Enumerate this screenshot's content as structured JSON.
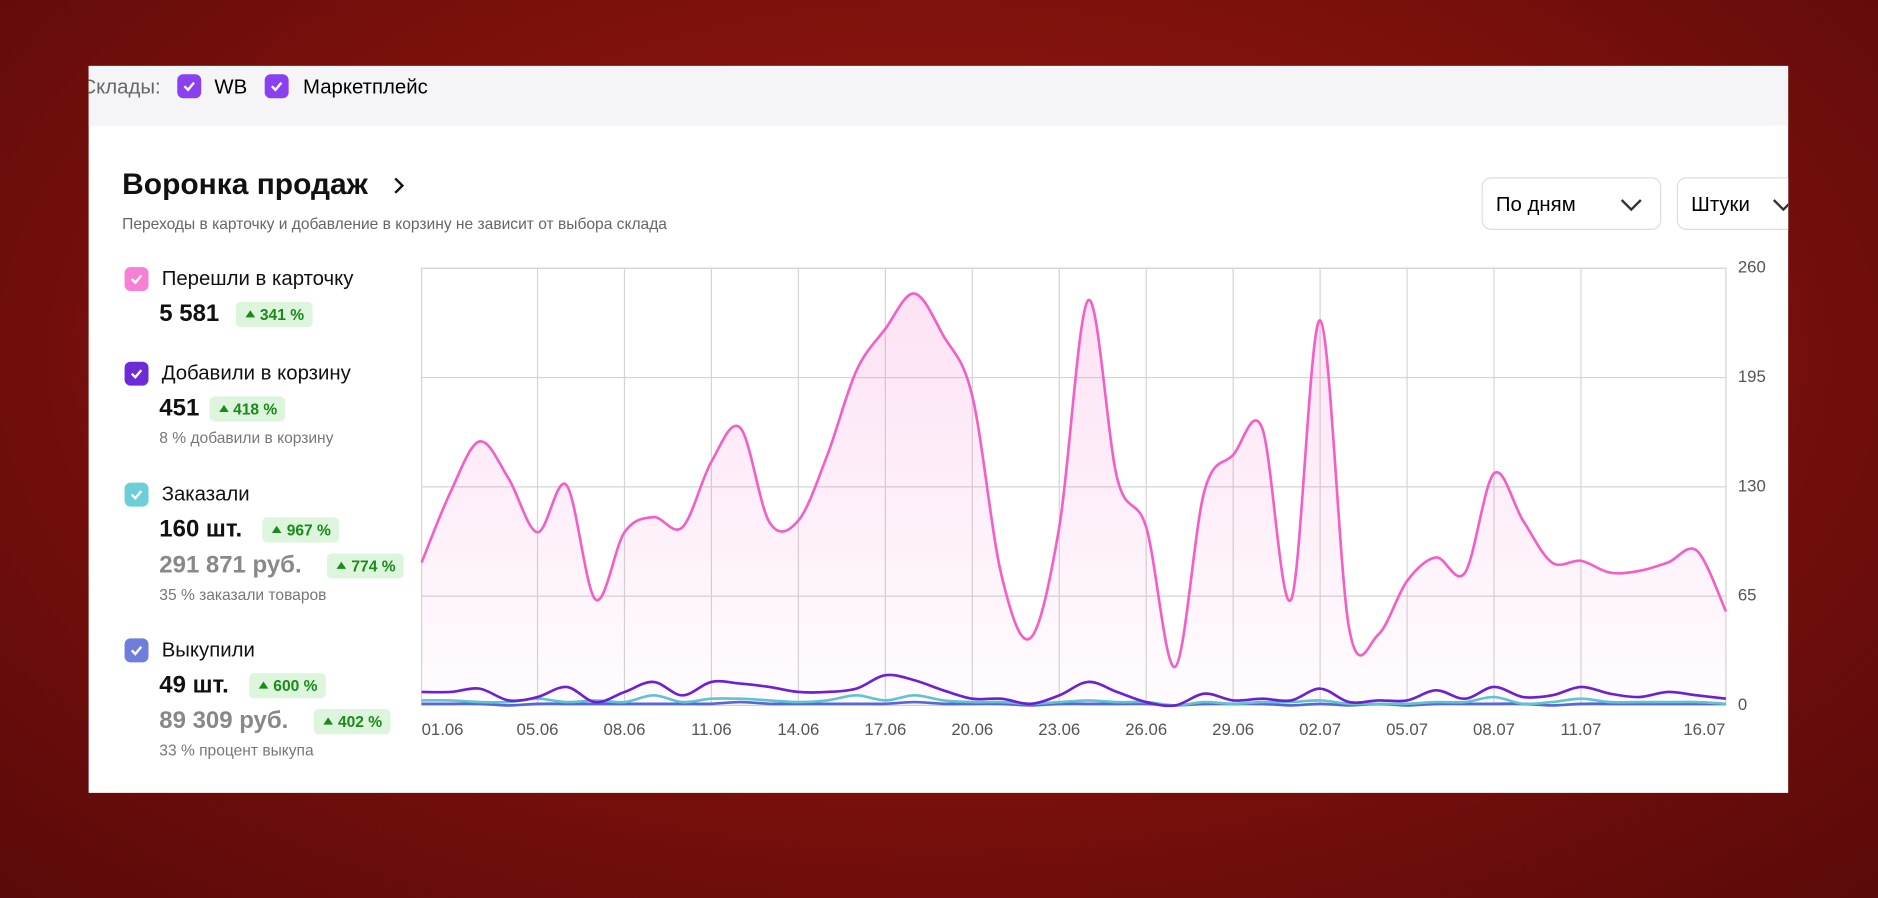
{
  "filter": {
    "label": "Склады:",
    "options": [
      "WB",
      "Маркетплейс"
    ]
  },
  "header": {
    "title": "Воронка продаж",
    "subtitle": "Переходы в карточку и добавление в корзину не зависит от выбора склада"
  },
  "dropdowns": [
    "По дням",
    "Штуки"
  ],
  "metrics": [
    {
      "name": "Перешли в карточку",
      "color": "#f77fd6",
      "value": "5 581",
      "change": "341 %"
    },
    {
      "name": "Добавили в корзину",
      "color": "#6b2bd6",
      "value": "451",
      "change": "418 %",
      "note": "8 % добавили в корзину"
    },
    {
      "name": "Заказали",
      "color": "#6ccfd8",
      "value": "160 шт.",
      "change": "967 %",
      "value2": "291 871 руб.",
      "change2": "774 %",
      "note": "35 % заказали товаров"
    },
    {
      "name": "Выкупили",
      "color": "#6f7ddb",
      "value": "49 шт.",
      "change": "600 %",
      "value2": "89 309 руб.",
      "change2": "402 %",
      "note": "33 % процент выкупа"
    }
  ],
  "chart_data": {
    "type": "line",
    "categories": [
      "01.06",
      null,
      null,
      null,
      "05.06",
      null,
      null,
      "08.06",
      null,
      null,
      "11.06",
      null,
      null,
      "14.06",
      null,
      null,
      "17.06",
      null,
      null,
      "20.06",
      null,
      null,
      "23.06",
      null,
      null,
      "26.06",
      null,
      null,
      "29.06",
      null,
      null,
      "02.07",
      null,
      null,
      "05.07",
      null,
      null,
      "08.07",
      null,
      null,
      "11.07",
      null,
      null,
      null,
      null,
      "16.07"
    ],
    "series": [
      {
        "color": "#f25fc6",
        "area": true,
        "values": [
          85,
          127,
          157,
          135,
          103,
          131,
          63,
          103,
          112,
          106,
          145,
          165,
          109,
          110,
          149,
          199,
          224,
          245,
          220,
          184,
          78,
          40,
          106,
          241,
          135,
          106,
          23,
          127,
          149,
          165,
          63,
          229,
          46,
          42,
          74,
          88,
          79,
          138,
          110,
          85,
          86,
          79,
          80,
          85,
          92,
          56
        ]
      },
      {
        "color": "#6a1fd0",
        "values": [
          8,
          8,
          10,
          3,
          5,
          11,
          2,
          8,
          14,
          6,
          14,
          13,
          11,
          8,
          8,
          10,
          18,
          15,
          9,
          4,
          4,
          1,
          6,
          14,
          8,
          2,
          0,
          7,
          3,
          4,
          3,
          10,
          2,
          3,
          3,
          9,
          4,
          11,
          5,
          6,
          11,
          7,
          5,
          8,
          6,
          4
        ]
      },
      {
        "color": "#5cc6cf",
        "values": [
          3,
          3,
          2,
          2,
          4,
          2,
          3,
          2,
          6,
          2,
          4,
          4,
          3,
          2,
          3,
          6,
          3,
          6,
          3,
          2,
          2,
          1,
          2,
          3,
          2,
          2,
          0,
          2,
          1,
          2,
          2,
          3,
          1,
          1,
          1,
          2,
          2,
          5,
          1,
          2,
          4,
          2,
          2,
          2,
          2,
          1
        ]
      },
      {
        "color": "#5567d6",
        "values": [
          1,
          1,
          1,
          0,
          1,
          1,
          1,
          1,
          1,
          1,
          1,
          2,
          1,
          1,
          1,
          1,
          1,
          2,
          1,
          1,
          1,
          0,
          1,
          1,
          1,
          1,
          0,
          1,
          1,
          1,
          0,
          1,
          0,
          1,
          0,
          1,
          1,
          1,
          1,
          0,
          1,
          1,
          1,
          1,
          1,
          1
        ]
      }
    ],
    "ylim": [
      0,
      260
    ],
    "yticks": [
      0,
      65,
      130,
      195,
      260
    ],
    "grid": true
  }
}
